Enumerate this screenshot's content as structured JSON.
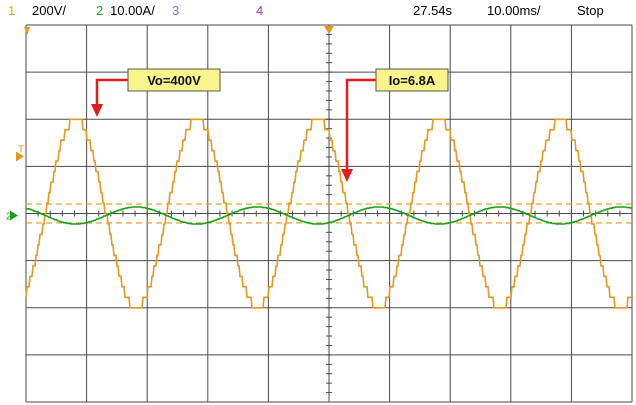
{
  "header": {
    "ch1_num": "1",
    "ch1_scale": "200V/",
    "ch2_num": "2",
    "ch2_scale": "10.00A/",
    "ch3_num": "3",
    "ch4_num": "4",
    "time": "27.54s",
    "timebase": "10.00ms/",
    "status": "Stop"
  },
  "colors": {
    "ch1": "#e8961e",
    "ch2": "#19a019",
    "ch3": "#6f7fcf",
    "ch4": "#c02fa8",
    "grid": "#4a4a4a",
    "callout_bg": "#fbf48c",
    "arrow": "#e41b1b"
  },
  "annotations": {
    "vo": "Vo=400V",
    "io": "Io=6.8A"
  },
  "markers": {
    "ch2_ground": "2",
    "trigger": "T"
  },
  "chart_data": {
    "type": "line",
    "xlabel": "",
    "ylabel": "",
    "x_divisions": 10,
    "y_divisions": 8,
    "x_unit_per_div": "10.00ms",
    "sample_times_ms": [
      0,
      5,
      10,
      15,
      20,
      25,
      30,
      35,
      40,
      45,
      50,
      55,
      60,
      65,
      70,
      75,
      80,
      85,
      90,
      95,
      100
    ],
    "series": [
      {
        "name": "1",
        "color": "#e8961e",
        "waveform": "stepped sine",
        "units_per_div": "200V",
        "values": [
          0,
          400,
          0,
          -400,
          0,
          400,
          0,
          -400,
          0,
          400,
          0,
          -400,
          0,
          400,
          0,
          -400,
          0,
          400,
          0,
          -400,
          0
        ]
      },
      {
        "name": "2",
        "color": "#19a019",
        "waveform": "sine",
        "units_per_div": "10.00A",
        "values": [
          0,
          6.8,
          0,
          -6.8,
          0,
          6.8,
          0,
          -6.8,
          0,
          6.8,
          0,
          -6.8,
          0,
          6.8,
          0,
          -6.8,
          0,
          6.8,
          0,
          -6.8,
          0
        ]
      }
    ],
    "reference_lines_V": [
      40,
      -40
    ],
    "grid": true
  }
}
